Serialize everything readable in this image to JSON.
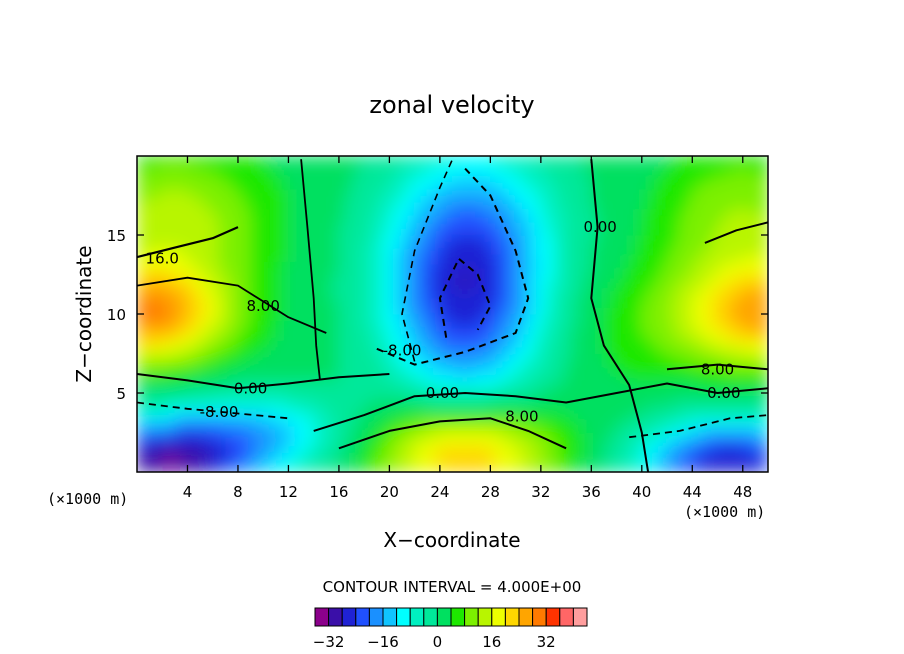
{
  "chart_data": {
    "type": "contour",
    "title": "zonal velocity",
    "xlabel": "X−coordinate",
    "ylabel": "Z−coordinate",
    "x_unit": "(×1000 m)",
    "z_unit": "(×1000 m)",
    "xlim": [
      0,
      50
    ],
    "ylim": [
      0,
      20
    ],
    "x_ticks": [
      4,
      8,
      12,
      16,
      20,
      24,
      28,
      32,
      36,
      40,
      44,
      48
    ],
    "x_tick_labels": [
      "4",
      "8",
      "12",
      "16",
      "20",
      "24",
      "28",
      "32",
      "36",
      "40",
      "44",
      "48"
    ],
    "y_ticks": [
      5,
      10,
      15
    ],
    "y_tick_labels": [
      "5",
      "10",
      "15"
    ],
    "contour_interval_text": "CONTOUR INTERVAL = 4.000E+00",
    "contour_interval": 4,
    "contour_labels": [
      {
        "text": "16.0",
        "x": 2,
        "y": 13.5
      },
      {
        "text": "8.00",
        "x": 10,
        "y": 10.5
      },
      {
        "text": "0.00",
        "x": 9,
        "y": 5.3
      },
      {
        "text": "-8.00",
        "x": 6.5,
        "y": 3.8
      },
      {
        "text": "-8.00",
        "x": 21,
        "y": 7.7
      },
      {
        "text": "0.00",
        "x": 24.2,
        "y": 5.0
      },
      {
        "text": "8.00",
        "x": 30.5,
        "y": 3.5
      },
      {
        "text": "0.00",
        "x": 36.7,
        "y": 15.5
      },
      {
        "text": "8.00",
        "x": 46,
        "y": 6.5
      },
      {
        "text": "0.00",
        "x": 46.5,
        "y": 5.0
      }
    ],
    "colorbar": {
      "levels": [
        -36,
        -32,
        -28,
        -24,
        -20,
        -16,
        -12,
        -8,
        -4,
        0,
        4,
        8,
        12,
        16,
        20,
        24,
        28,
        32,
        36,
        40
      ],
      "tick_values": [
        -32,
        -16,
        0,
        16,
        32
      ],
      "tick_labels": [
        "−32",
        "−16",
        "0",
        "16",
        "32"
      ],
      "colors": [
        "#8b008b",
        "#3a0fa8",
        "#1f22d4",
        "#2050ff",
        "#1a90ff",
        "#10c4ff",
        "#00ffff",
        "#00f0c0",
        "#00e89a",
        "#00e060",
        "#1ee800",
        "#7cf000",
        "#b8f500",
        "#eeff00",
        "#ffd700",
        "#ffa500",
        "#ff7a00",
        "#ff3300",
        "#ff6666",
        "#ff9e9e"
      ]
    }
  }
}
